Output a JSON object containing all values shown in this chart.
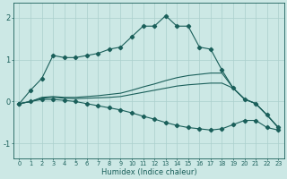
{
  "xlabel": "Humidex (Indice chaleur)",
  "bg_color": "#cce8e5",
  "grid_color": "#aacfcc",
  "line_color": "#1a5f5a",
  "xlim": [
    -0.5,
    23.5
  ],
  "ylim": [
    -1.35,
    2.35
  ],
  "xticks": [
    0,
    1,
    2,
    3,
    4,
    5,
    6,
    7,
    8,
    9,
    10,
    11,
    12,
    13,
    14,
    15,
    16,
    17,
    18,
    19,
    20,
    21,
    22,
    23
  ],
  "yticks": [
    -1,
    0,
    1,
    2
  ],
  "series": [
    {
      "y": [
        -0.05,
        0.27,
        0.55,
        1.1,
        1.05,
        1.05,
        1.1,
        1.15,
        1.25,
        1.3,
        1.55,
        1.8,
        1.8,
        2.05,
        1.8,
        1.8,
        1.3,
        1.25,
        0.75,
        0.32,
        0.06,
        -0.05,
        -0.32,
        -0.62
      ],
      "markers": true
    },
    {
      "y": [
        -0.05,
        0.0,
        0.1,
        0.12,
        0.1,
        0.1,
        0.12,
        0.14,
        0.17,
        0.2,
        0.27,
        0.35,
        0.42,
        0.5,
        0.57,
        0.62,
        0.65,
        0.68,
        0.68,
        0.32,
        0.06,
        -0.05,
        -0.32,
        -0.62
      ],
      "markers": false
    },
    {
      "y": [
        -0.05,
        0.0,
        0.08,
        0.1,
        0.08,
        0.07,
        0.08,
        0.09,
        0.1,
        0.12,
        0.17,
        0.22,
        0.27,
        0.32,
        0.37,
        0.4,
        0.42,
        0.44,
        0.44,
        0.32,
        0.06,
        -0.05,
        -0.32,
        -0.62
      ],
      "markers": false
    },
    {
      "y": [
        -0.05,
        0.0,
        0.05,
        0.05,
        0.03,
        0.0,
        -0.05,
        -0.1,
        -0.15,
        -0.2,
        -0.27,
        -0.35,
        -0.42,
        -0.5,
        -0.57,
        -0.62,
        -0.65,
        -0.68,
        -0.65,
        -0.55,
        -0.45,
        -0.45,
        -0.62,
        -0.68
      ],
      "markers": true
    }
  ]
}
